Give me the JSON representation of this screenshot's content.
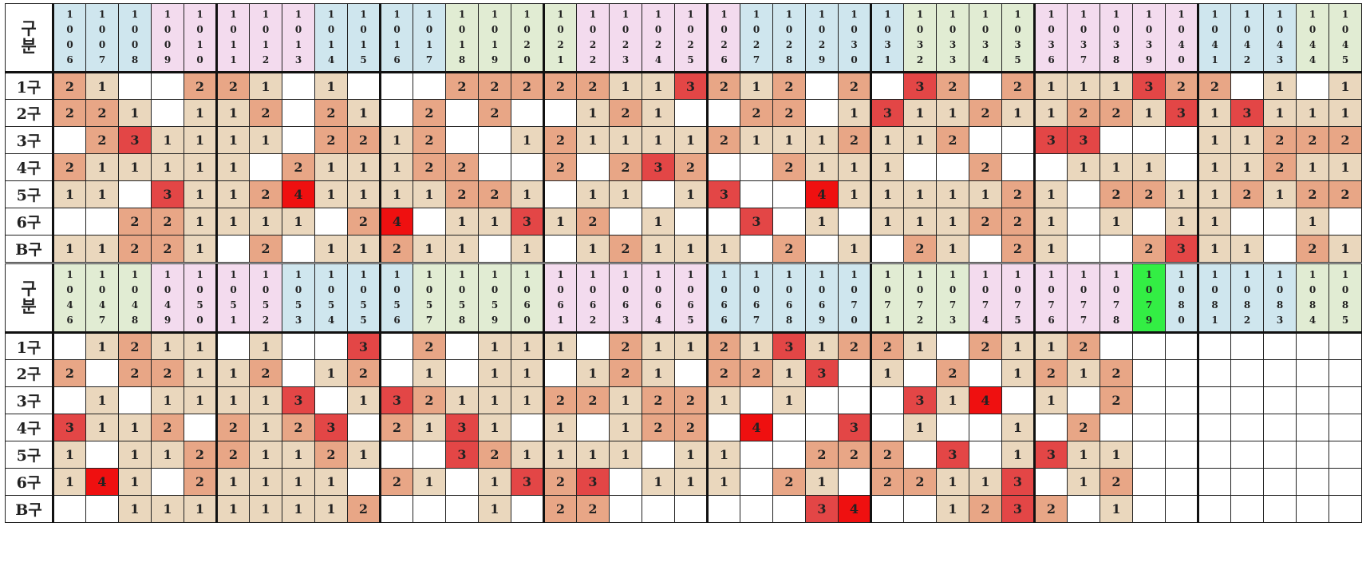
{
  "label_top": "구",
  "label_bottom": "분",
  "row_labels": [
    "1구",
    "2구",
    "3구",
    "4구",
    "5구",
    "6구",
    "B구"
  ],
  "tables": [
    {
      "headers": [
        "1006",
        "1007",
        "1008",
        "1009",
        "1010",
        "1011",
        "1012",
        "1013",
        "1014",
        "1015",
        "1016",
        "1017",
        "1018",
        "1019",
        "1020",
        "1021",
        "1022",
        "1023",
        "1024",
        "1025",
        "1026",
        "1027",
        "1028",
        "1029",
        "1030",
        "1031",
        "1032",
        "1033",
        "1034",
        "1035",
        "1036",
        "1037",
        "1038",
        "1039",
        "1040",
        "1041",
        "1042",
        "1043",
        "1044",
        "1045"
      ],
      "header_colors": [
        "blue",
        "blue",
        "blue",
        "pink",
        "pink",
        "pink",
        "pink",
        "pink",
        "blue",
        "blue",
        "blue",
        "blue",
        "green",
        "green",
        "green",
        "green",
        "pink",
        "pink",
        "pink",
        "pink",
        "pink",
        "blue",
        "blue",
        "blue",
        "blue",
        "blue",
        "green",
        "green",
        "green",
        "green",
        "pink",
        "pink",
        "pink",
        "pink",
        "pink",
        "blue",
        "blue",
        "blue",
        "green",
        "green"
      ],
      "rows": [
        [
          2,
          1,
          0,
          0,
          2,
          2,
          1,
          0,
          1,
          0,
          0,
          0,
          2,
          2,
          2,
          2,
          2,
          1,
          1,
          3,
          2,
          1,
          2,
          0,
          2,
          0,
          3,
          2,
          0,
          2,
          1,
          1,
          1,
          3,
          2,
          2,
          0,
          1,
          0,
          1
        ],
        [
          2,
          2,
          1,
          0,
          1,
          1,
          2,
          0,
          2,
          1,
          0,
          2,
          0,
          2,
          0,
          0,
          1,
          2,
          1,
          0,
          0,
          2,
          2,
          0,
          1,
          3,
          1,
          1,
          2,
          1,
          1,
          2,
          2,
          1,
          3,
          1,
          3,
          1,
          1,
          1
        ],
        [
          0,
          2,
          3,
          1,
          1,
          1,
          1,
          0,
          2,
          2,
          1,
          2,
          0,
          0,
          1,
          2,
          1,
          1,
          1,
          1,
          2,
          1,
          1,
          1,
          2,
          1,
          1,
          2,
          0,
          0,
          3,
          3,
          0,
          0,
          0,
          1,
          1,
          2,
          2,
          2
        ],
        [
          2,
          1,
          1,
          1,
          1,
          1,
          0,
          2,
          1,
          1,
          1,
          2,
          2,
          0,
          0,
          2,
          0,
          2,
          3,
          2,
          0,
          0,
          2,
          1,
          1,
          1,
          0,
          0,
          2,
          0,
          0,
          1,
          1,
          1,
          0,
          1,
          1,
          2,
          1,
          1
        ],
        [
          1,
          1,
          0,
          3,
          1,
          1,
          2,
          4,
          1,
          1,
          1,
          1,
          2,
          2,
          1,
          0,
          1,
          1,
          0,
          1,
          3,
          0,
          0,
          4,
          1,
          1,
          1,
          1,
          1,
          2,
          1,
          0,
          2,
          2,
          1,
          1,
          2,
          1,
          2,
          2
        ],
        [
          0,
          0,
          2,
          2,
          1,
          1,
          1,
          1,
          0,
          2,
          4,
          0,
          1,
          1,
          3,
          1,
          2,
          0,
          1,
          0,
          0,
          3,
          0,
          1,
          0,
          1,
          1,
          1,
          2,
          2,
          1,
          0,
          1,
          0,
          1,
          1,
          0,
          0,
          1,
          0
        ],
        [
          1,
          1,
          2,
          2,
          1,
          0,
          2,
          0,
          1,
          1,
          2,
          1,
          1,
          0,
          1,
          0,
          1,
          2,
          1,
          1,
          1,
          0,
          2,
          0,
          1,
          0,
          2,
          1,
          0,
          2,
          1,
          0,
          0,
          2,
          3,
          1,
          1,
          0,
          2,
          1
        ]
      ]
    },
    {
      "headers": [
        "1046",
        "1047",
        "1048",
        "1049",
        "1050",
        "1051",
        "1052",
        "1053",
        "1054",
        "1055",
        "1056",
        "1057",
        "1058",
        "1059",
        "1060",
        "1061",
        "1062",
        "1063",
        "1064",
        "1065",
        "1066",
        "1067",
        "1068",
        "1069",
        "1070",
        "1071",
        "1072",
        "1073",
        "1074",
        "1075",
        "1076",
        "1077",
        "1078",
        "1079",
        "1080",
        "1081",
        "1082",
        "1083",
        "1084",
        "1085"
      ],
      "header_colors": [
        "green",
        "green",
        "green",
        "pink",
        "pink",
        "pink",
        "pink",
        "blue",
        "blue",
        "blue",
        "blue",
        "green",
        "green",
        "green",
        "green",
        "pink",
        "pink",
        "pink",
        "pink",
        "pink",
        "blue",
        "blue",
        "blue",
        "blue",
        "blue",
        "green",
        "green",
        "green",
        "pink",
        "pink",
        "pink",
        "pink",
        "pink",
        "bright",
        "blue",
        "blue",
        "blue",
        "blue",
        "green",
        "green"
      ],
      "rows": [
        [
          0,
          1,
          2,
          1,
          1,
          0,
          1,
          0,
          0,
          3,
          0,
          2,
          0,
          1,
          1,
          1,
          0,
          2,
          1,
          1,
          2,
          1,
          3,
          1,
          2,
          2,
          1,
          0,
          2,
          1,
          1,
          2,
          0,
          0,
          0,
          0,
          0,
          0,
          0,
          0
        ],
        [
          2,
          0,
          2,
          2,
          1,
          1,
          2,
          0,
          1,
          2,
          0,
          1,
          0,
          1,
          1,
          0,
          1,
          2,
          1,
          0,
          2,
          2,
          1,
          3,
          0,
          1,
          0,
          2,
          0,
          1,
          2,
          1,
          2,
          0,
          0,
          0,
          0,
          0,
          0,
          0
        ],
        [
          0,
          1,
          0,
          1,
          1,
          1,
          1,
          3,
          0,
          1,
          3,
          2,
          1,
          1,
          1,
          2,
          2,
          1,
          2,
          2,
          1,
          0,
          1,
          0,
          0,
          0,
          3,
          1,
          4,
          0,
          1,
          0,
          2,
          0,
          0,
          0,
          0,
          0,
          0,
          0
        ],
        [
          3,
          1,
          1,
          2,
          0,
          2,
          1,
          2,
          3,
          0,
          2,
          1,
          3,
          1,
          0,
          1,
          0,
          1,
          2,
          2,
          0,
          4,
          0,
          0,
          3,
          0,
          1,
          0,
          0,
          1,
          0,
          2,
          0,
          0,
          0,
          0,
          0,
          0,
          0,
          0
        ],
        [
          1,
          0,
          1,
          1,
          2,
          2,
          1,
          1,
          2,
          1,
          0,
          0,
          3,
          2,
          1,
          1,
          1,
          1,
          0,
          1,
          1,
          0,
          0,
          2,
          2,
          2,
          0,
          3,
          0,
          1,
          3,
          1,
          1,
          0,
          0,
          0,
          0,
          0,
          0,
          0
        ],
        [
          1,
          4,
          1,
          0,
          2,
          1,
          1,
          1,
          1,
          0,
          2,
          1,
          0,
          1,
          3,
          2,
          3,
          0,
          1,
          1,
          1,
          0,
          2,
          1,
          0,
          2,
          2,
          1,
          1,
          3,
          0,
          1,
          2,
          0,
          0,
          0,
          0,
          0,
          0,
          0
        ],
        [
          0,
          0,
          1,
          1,
          1,
          1,
          1,
          1,
          1,
          2,
          0,
          0,
          0,
          1,
          0,
          2,
          2,
          0,
          0,
          0,
          0,
          0,
          0,
          3,
          4,
          0,
          0,
          1,
          2,
          3,
          2,
          0,
          1,
          0,
          0,
          0,
          0,
          0,
          0,
          0
        ]
      ]
    }
  ]
}
